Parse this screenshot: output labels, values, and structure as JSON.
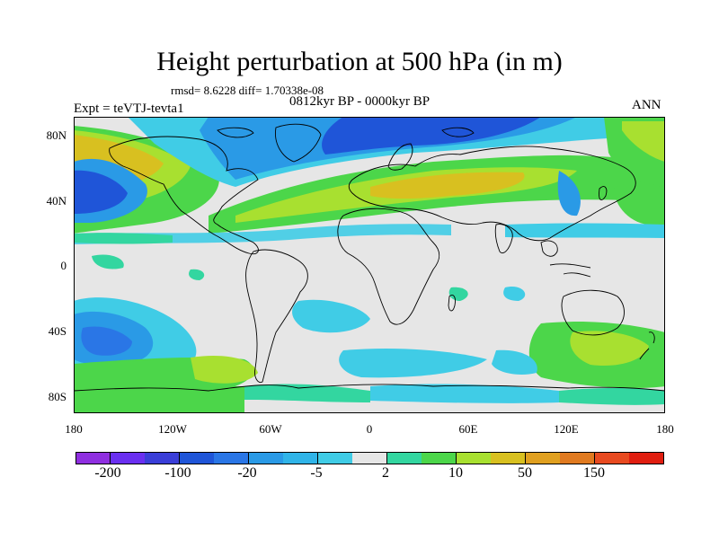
{
  "header": {
    "title": "Height perturbation at 500 hPa (in m)",
    "stats": "rmsd= 8.6228 diff= 1.70338e-08",
    "period": "0812kyr BP - 0000kyr BP",
    "experiment": "Expt = teVTJ-tevta1",
    "season": "ANN"
  },
  "map": {
    "lat_labels": [
      "80N",
      "40N",
      "0",
      "40S",
      "80S"
    ],
    "lon_labels": [
      "180",
      "120W",
      "60W",
      "0",
      "60E",
      "120E",
      "180"
    ]
  },
  "colorbar": {
    "colors": [
      "#8f2fe0",
      "#6a2ff0",
      "#3a3ed8",
      "#1f55d8",
      "#2a76e6",
      "#2a9ae6",
      "#30b4e8",
      "#40cce6",
      "#e6e6e6",
      "#33d6a0",
      "#4cd64a",
      "#a8e030",
      "#d8c020",
      "#e0a020",
      "#e07a20",
      "#e84a20",
      "#e01e10"
    ],
    "labels": [
      "-200",
      "-100",
      "-20",
      "-5",
      "2",
      "10",
      "50",
      "150"
    ]
  }
}
